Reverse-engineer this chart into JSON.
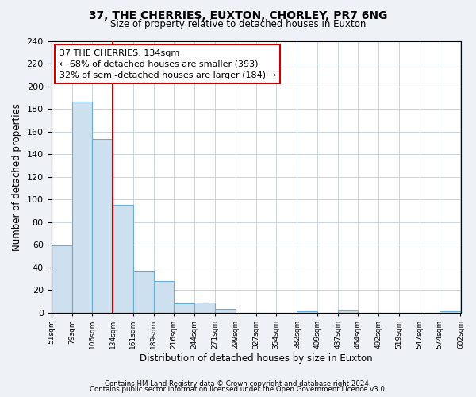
{
  "title": "37, THE CHERRIES, EUXTON, CHORLEY, PR7 6NG",
  "subtitle": "Size of property relative to detached houses in Euxton",
  "xlabel": "Distribution of detached houses by size in Euxton",
  "ylabel": "Number of detached properties",
  "bin_labels": [
    "51sqm",
    "79sqm",
    "106sqm",
    "134sqm",
    "161sqm",
    "189sqm",
    "216sqm",
    "244sqm",
    "271sqm",
    "299sqm",
    "327sqm",
    "354sqm",
    "382sqm",
    "409sqm",
    "437sqm",
    "464sqm",
    "492sqm",
    "519sqm",
    "547sqm",
    "574sqm",
    "602sqm"
  ],
  "bar_values": [
    59,
    186,
    153,
    95,
    37,
    28,
    8,
    9,
    3,
    0,
    0,
    0,
    1,
    0,
    2,
    0,
    0,
    0,
    0,
    1,
    0
  ],
  "bin_edges": [
    51,
    79,
    106,
    134,
    161,
    189,
    216,
    244,
    271,
    299,
    327,
    354,
    382,
    409,
    437,
    464,
    492,
    519,
    547,
    574,
    602
  ],
  "property_line_x": 134,
  "bar_color": "#cde0f0",
  "bar_edge_color": "#6aadd5",
  "red_line_color": "#cc0000",
  "annotation_line1": "37 THE CHERRIES: 134sqm",
  "annotation_line2": "← 68% of detached houses are smaller (393)",
  "annotation_line3": "32% of semi-detached houses are larger (184) →",
  "annotation_box_color": "#ffffff",
  "annotation_box_edge": "#cc0000",
  "ylim": [
    0,
    240
  ],
  "yticks": [
    0,
    20,
    40,
    60,
    80,
    100,
    120,
    140,
    160,
    180,
    200,
    220,
    240
  ],
  "footer1": "Contains HM Land Registry data © Crown copyright and database right 2024.",
  "footer2": "Contains public sector information licensed under the Open Government Licence v3.0.",
  "bg_color": "#eef2f7",
  "plot_bg_color": "#ffffff",
  "grid_color": "#c0cdd8"
}
